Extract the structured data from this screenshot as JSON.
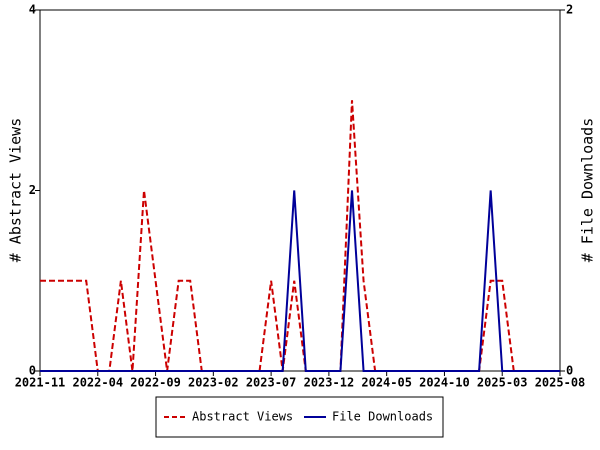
{
  "chart_data": {
    "type": "line",
    "categories": [
      "2021-11",
      null,
      null,
      null,
      null,
      "2022-04",
      null,
      null,
      null,
      null,
      "2022-09",
      null,
      null,
      null,
      null,
      "2023-02",
      null,
      null,
      null,
      null,
      "2023-07",
      null,
      null,
      null,
      null,
      "2023-12",
      null,
      null,
      null,
      null,
      "2024-05",
      null,
      null,
      null,
      null,
      "2024-10",
      null,
      null,
      null,
      null,
      "2025-03",
      null,
      null,
      null,
      null,
      "2025-08"
    ],
    "y_label": "# Abstract Views",
    "y2_label": "# File Downloads",
    "ylim": [
      0,
      4
    ],
    "yticks": [
      0,
      2,
      4
    ],
    "y2lim": [
      0,
      2
    ],
    "y2ticks": [
      0,
      2
    ],
    "series": [
      {
        "name": "Abstract Views",
        "color": "#cc0000",
        "dash": true,
        "values": [
          1,
          1,
          1,
          1,
          1,
          0,
          0,
          1,
          0,
          2,
          1,
          0,
          1,
          1,
          0,
          0,
          0,
          0,
          0,
          0,
          1,
          0,
          1,
          0,
          0,
          0,
          0,
          3,
          1,
          0,
          0,
          0,
          0,
          0,
          0,
          0,
          0,
          0,
          0,
          1,
          1,
          0,
          0,
          0,
          0,
          0
        ]
      },
      {
        "name": "File Downloads",
        "color": "#000099",
        "dash": false,
        "axis": "y2",
        "values": [
          0,
          0,
          0,
          0,
          0,
          0,
          0,
          0,
          0,
          0,
          0,
          0,
          0,
          0,
          0,
          0,
          0,
          0,
          0,
          0,
          0,
          0,
          1,
          0,
          0,
          0,
          0,
          1,
          0,
          0,
          0,
          0,
          0,
          0,
          0,
          0,
          0,
          0,
          0,
          1,
          0,
          0,
          0,
          0,
          0,
          0
        ]
      }
    ]
  }
}
